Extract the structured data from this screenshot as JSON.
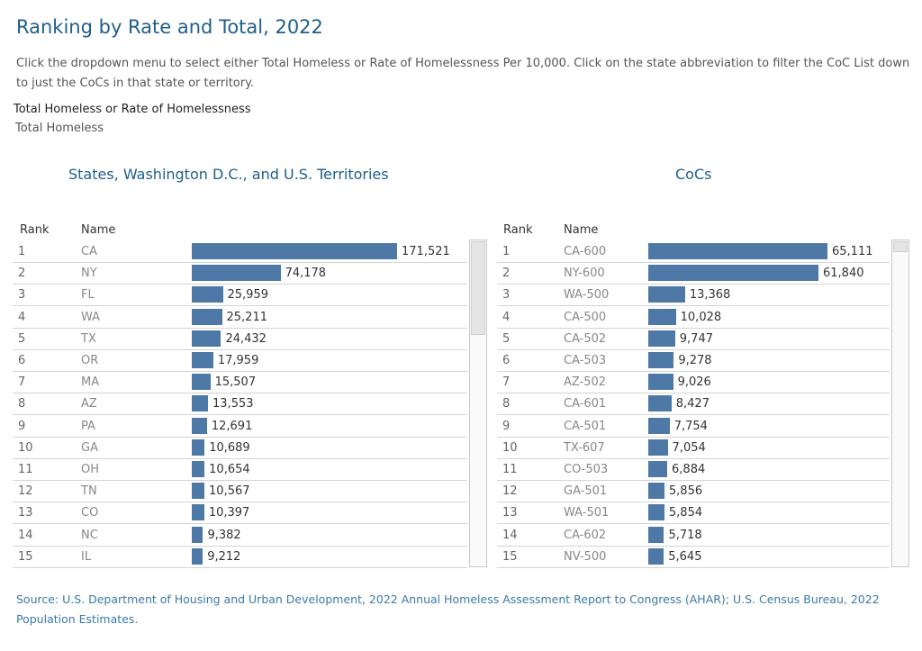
{
  "title": "Ranking by Rate and Total, 2022",
  "description": "Click the dropdown menu to select either Total Homeless or Rate of Homelessness Per 10,000. Click on the state abbreviation to filter the CoC List down to just the CoCs in that state or territory.",
  "filter": {
    "label": "Total Homeless or Rate of Homelessness",
    "value": "Total Homeless"
  },
  "source": "Source: U.S. Department of Housing and Urban Development, 2022 Annual Homeless Assessment Report to Congress (AHAR); U.S. Census Bureau, 2022 Population Estimates.",
  "colors": {
    "bar": "#4e79a7",
    "title": "#1f5f8b",
    "source": "#3a7aa8"
  },
  "chart_data": [
    {
      "type": "bar",
      "title": "States, Washington D.C., and U.S. Territories",
      "columns": {
        "rank": "Rank",
        "name": "Name"
      },
      "max": 171521,
      "rows": [
        {
          "rank": "1",
          "name": "CA",
          "value": 171521,
          "label": "171,521"
        },
        {
          "rank": "2",
          "name": "NY",
          "value": 74178,
          "label": "74,178"
        },
        {
          "rank": "3",
          "name": "FL",
          "value": 25959,
          "label": "25,959"
        },
        {
          "rank": "4",
          "name": "WA",
          "value": 25211,
          "label": "25,211"
        },
        {
          "rank": "5",
          "name": "TX",
          "value": 24432,
          "label": "24,432"
        },
        {
          "rank": "6",
          "name": "OR",
          "value": 17959,
          "label": "17,959"
        },
        {
          "rank": "7",
          "name": "MA",
          "value": 15507,
          "label": "15,507"
        },
        {
          "rank": "8",
          "name": "AZ",
          "value": 13553,
          "label": "13,553"
        },
        {
          "rank": "9",
          "name": "PA",
          "value": 12691,
          "label": "12,691"
        },
        {
          "rank": "10",
          "name": "GA",
          "value": 10689,
          "label": "10,689"
        },
        {
          "rank": "11",
          "name": "OH",
          "value": 10654,
          "label": "10,654"
        },
        {
          "rank": "12",
          "name": "TN",
          "value": 10567,
          "label": "10,567"
        },
        {
          "rank": "13",
          "name": "CO",
          "value": 10397,
          "label": "10,397"
        },
        {
          "rank": "14",
          "name": "NC",
          "value": 9382,
          "label": "9,382"
        },
        {
          "rank": "15",
          "name": "IL",
          "value": 9212,
          "label": "9,212"
        }
      ]
    },
    {
      "type": "bar",
      "title": "CoCs",
      "columns": {
        "rank": "Rank",
        "name": "Name"
      },
      "max": 65111,
      "rows": [
        {
          "rank": "1",
          "name": "CA-600",
          "value": 65111,
          "label": "65,111"
        },
        {
          "rank": "2",
          "name": "NY-600",
          "value": 61840,
          "label": "61,840"
        },
        {
          "rank": "3",
          "name": "WA-500",
          "value": 13368,
          "label": "13,368"
        },
        {
          "rank": "4",
          "name": "CA-500",
          "value": 10028,
          "label": "10,028"
        },
        {
          "rank": "5",
          "name": "CA-502",
          "value": 9747,
          "label": "9,747"
        },
        {
          "rank": "6",
          "name": "CA-503",
          "value": 9278,
          "label": "9,278"
        },
        {
          "rank": "7",
          "name": "AZ-502",
          "value": 9026,
          "label": "9,026"
        },
        {
          "rank": "8",
          "name": "CA-601",
          "value": 8427,
          "label": "8,427"
        },
        {
          "rank": "9",
          "name": "CA-501",
          "value": 7754,
          "label": "7,754"
        },
        {
          "rank": "10",
          "name": "TX-607",
          "value": 7054,
          "label": "7,054"
        },
        {
          "rank": "11",
          "name": "CO-503",
          "value": 6884,
          "label": "6,884"
        },
        {
          "rank": "12",
          "name": "GA-501",
          "value": 5856,
          "label": "5,856"
        },
        {
          "rank": "13",
          "name": "WA-501",
          "value": 5854,
          "label": "5,854"
        },
        {
          "rank": "14",
          "name": "CA-602",
          "value": 5718,
          "label": "5,718"
        },
        {
          "rank": "15",
          "name": "NV-500",
          "value": 5645,
          "label": "5,645"
        }
      ]
    }
  ]
}
